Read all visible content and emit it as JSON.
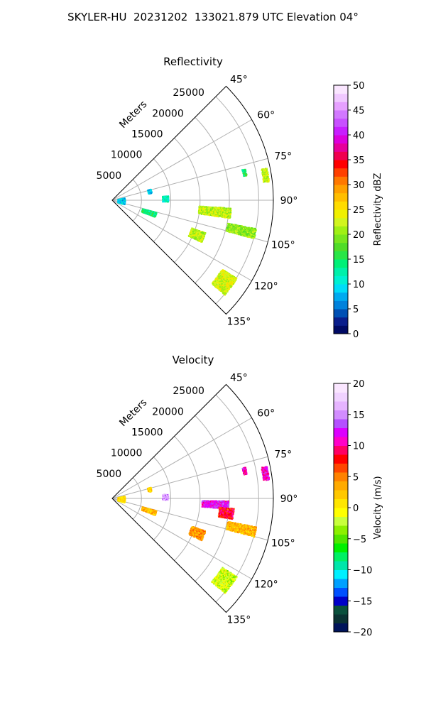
{
  "suptitle": "SKYLER-HU  20231202  133021.879 UTC Elevation 04°",
  "chart_data": [
    {
      "type": "heatmap",
      "projection": "polar-sector",
      "title": "Reflectivity",
      "radial_label": "Meters",
      "range_ticks": [
        5000,
        10000,
        15000,
        20000,
        25000
      ],
      "rmax": 27500,
      "azimuth_ticks": [
        "45°",
        "60°",
        "75°",
        "90°",
        "105°",
        "120°",
        "135°"
      ],
      "azimuth_range": [
        45,
        135
      ],
      "grid": true,
      "colorbar": {
        "label": "Reflectivity dBZ",
        "min": 0,
        "max": 50,
        "ticks": [
          "0",
          "5",
          "10",
          "15",
          "20",
          "25",
          "30",
          "35",
          "40",
          "45",
          "50"
        ]
      },
      "echoes": [
        {
          "azimuth": 80.5,
          "range": 26400,
          "value": 22,
          "extent_az": 2.5,
          "extent_r": 1000
        },
        {
          "azimuth": 78,
          "range": 23000,
          "value": 15,
          "extent_az": 1.5,
          "extent_r": 600
        },
        {
          "azimuth": 96,
          "range": 17500,
          "value": 22,
          "extent_az": 2.5,
          "extent_r": 5500
        },
        {
          "azimuth": 103,
          "range": 22500,
          "value": 20,
          "extent_az": 2,
          "extent_r": 5000
        },
        {
          "azimuth": 112,
          "range": 15500,
          "value": 22,
          "extent_az": 3,
          "extent_r": 2500
        },
        {
          "azimuth": 126,
          "range": 23500,
          "value": 23,
          "extent_az": 4,
          "extent_r": 3000
        },
        {
          "azimuth": 88,
          "range": 9000,
          "value": 12,
          "extent_az": 3,
          "extent_r": 1000
        },
        {
          "azimuth": 76,
          "range": 6500,
          "value": 8,
          "extent_az": 3,
          "extent_r": 600
        },
        {
          "azimuth": 108,
          "range": 6500,
          "value": 14,
          "extent_az": 3,
          "extent_r": 2500
        },
        {
          "azimuth": 92,
          "range": 1500,
          "value": 9,
          "extent_az": 15,
          "extent_r": 1200
        }
      ]
    },
    {
      "type": "heatmap",
      "projection": "polar-sector",
      "title": "Velocity",
      "radial_label": "Meters",
      "range_ticks": [
        5000,
        10000,
        15000,
        20000,
        25000
      ],
      "rmax": 27500,
      "azimuth_ticks": [
        "45°",
        "60°",
        "75°",
        "90°",
        "105°",
        "120°",
        "135°"
      ],
      "azimuth_range": [
        45,
        135
      ],
      "grid": true,
      "colorbar": {
        "label": "Velocity (m/s)",
        "min": -20,
        "max": 20,
        "ticks": [
          "−20",
          "−15",
          "−10",
          "−5",
          "0",
          "5",
          "10",
          "15",
          "20"
        ]
      },
      "echoes": [
        {
          "azimuth": 80.5,
          "range": 26400,
          "value": 11,
          "extent_az": 2.5,
          "extent_r": 1000
        },
        {
          "azimuth": 78,
          "range": 23000,
          "value": 11,
          "extent_az": 1.5,
          "extent_r": 600
        },
        {
          "azimuth": 93,
          "range": 17500,
          "value": 12,
          "extent_az": 2,
          "extent_r": 4500
        },
        {
          "azimuth": 97,
          "range": 19500,
          "value": 8,
          "extent_az": 2.5,
          "extent_r": 2500
        },
        {
          "azimuth": 103,
          "range": 22500,
          "value": 3,
          "extent_az": 2,
          "extent_r": 5000
        },
        {
          "azimuth": 112,
          "range": 15500,
          "value": 4,
          "extent_az": 3,
          "extent_r": 2500
        },
        {
          "azimuth": 126,
          "range": 23500,
          "value": -2,
          "extent_az": 4,
          "extent_r": 3000
        },
        {
          "azimuth": 88,
          "range": 9000,
          "value": 16,
          "extent_az": 3,
          "extent_r": 1000
        },
        {
          "azimuth": 76,
          "range": 6500,
          "value": 2,
          "extent_az": 3,
          "extent_r": 600
        },
        {
          "azimuth": 108,
          "range": 6500,
          "value": 3,
          "extent_az": 3,
          "extent_r": 2500
        },
        {
          "azimuth": 92,
          "range": 1500,
          "value": 1,
          "extent_az": 15,
          "extent_r": 1200
        }
      ]
    }
  ]
}
